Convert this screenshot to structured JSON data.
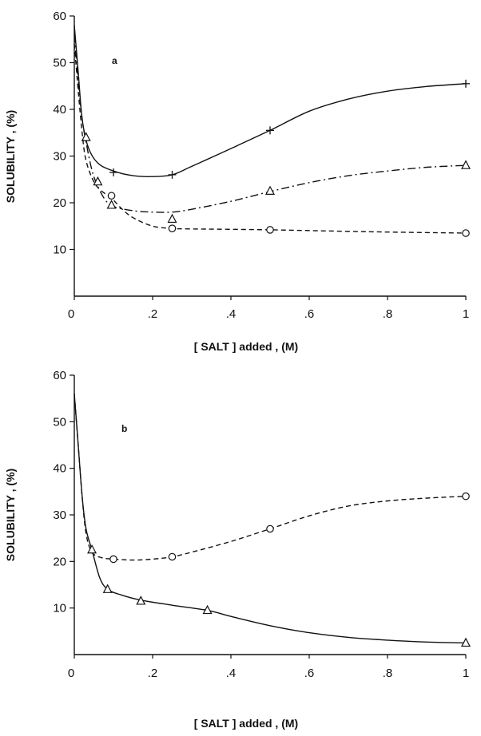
{
  "chart_data": [
    {
      "type": "line",
      "panel_label": "a",
      "xlabel": "[ SALT ] added , (M)",
      "ylabel": "SOLUBILITY , (%)",
      "xlim": [
        0,
        1
      ],
      "ylim": [
        0,
        60
      ],
      "x_ticks": [
        0,
        0.2,
        0.4,
        0.6,
        0.8,
        1
      ],
      "x_tick_labels": [
        "0",
        ".2",
        ".4",
        ".6",
        ".8",
        "1"
      ],
      "y_ticks": [
        10,
        20,
        30,
        40,
        50,
        60
      ],
      "y_tick_labels": [
        "10",
        "20",
        "30",
        "40",
        "50",
        "60"
      ],
      "grid": false,
      "series": [
        {
          "marker": "plus",
          "line_style": "solid",
          "points": [
            [
              0.1,
              26.5
            ],
            [
              0.25,
              26
            ],
            [
              0.5,
              35.5
            ],
            [
              1.0,
              45.5
            ]
          ],
          "curve": [
            [
              0.0,
              58
            ],
            [
              0.01,
              48
            ],
            [
              0.02,
              38
            ],
            [
              0.035,
              32
            ],
            [
              0.06,
              28.5
            ],
            [
              0.1,
              26.8
            ],
            [
              0.15,
              25.8
            ],
            [
              0.2,
              25.6
            ],
            [
              0.25,
              26
            ],
            [
              0.3,
              27.8
            ],
            [
              0.4,
              31.6
            ],
            [
              0.5,
              35.5
            ],
            [
              0.6,
              39.6
            ],
            [
              0.7,
              42.2
            ],
            [
              0.8,
              43.9
            ],
            [
              0.9,
              44.9
            ],
            [
              1.0,
              45.5
            ]
          ]
        },
        {
          "marker": "triangle",
          "line_style": "dashdot",
          "points": [
            [
              0.03,
              34
            ],
            [
              0.06,
              24.5
            ],
            [
              0.095,
              19.5
            ],
            [
              0.25,
              16.5
            ],
            [
              0.5,
              22.5
            ],
            [
              1.0,
              28
            ]
          ],
          "curve": [
            [
              0.0,
              56
            ],
            [
              0.01,
              46
            ],
            [
              0.02,
              38
            ],
            [
              0.03,
              33
            ],
            [
              0.045,
              27
            ],
            [
              0.06,
              23.5
            ],
            [
              0.08,
              20.5
            ],
            [
              0.1,
              19.2
            ],
            [
              0.15,
              18.3
            ],
            [
              0.2,
              18
            ],
            [
              0.25,
              18
            ],
            [
              0.3,
              18.6
            ],
            [
              0.4,
              20.3
            ],
            [
              0.5,
              22.4
            ],
            [
              0.6,
              24.3
            ],
            [
              0.7,
              25.8
            ],
            [
              0.8,
              26.8
            ],
            [
              0.9,
              27.6
            ],
            [
              1.0,
              28
            ]
          ]
        },
        {
          "marker": "circle",
          "line_style": "dashed",
          "points": [
            [
              0.095,
              21.5
            ],
            [
              0.25,
              14.5
            ],
            [
              0.5,
              14.2
            ],
            [
              1.0,
              13.5
            ]
          ],
          "curve": [
            [
              0.0,
              54
            ],
            [
              0.01,
              44
            ],
            [
              0.02,
              35
            ],
            [
              0.03,
              29
            ],
            [
              0.05,
              24.5
            ],
            [
              0.07,
              22.5
            ],
            [
              0.095,
              21
            ],
            [
              0.12,
              18.8
            ],
            [
              0.15,
              16.8
            ],
            [
              0.2,
              15
            ],
            [
              0.25,
              14.5
            ],
            [
              0.3,
              14.4
            ],
            [
              0.5,
              14.2
            ],
            [
              0.75,
              13.8
            ],
            [
              1.0,
              13.5
            ]
          ]
        }
      ]
    },
    {
      "type": "line",
      "panel_label": "b",
      "xlabel": "[ SALT ] added , (M)",
      "ylabel": "SOLUBILITY , (%)",
      "xlim": [
        0,
        1
      ],
      "ylim": [
        0,
        60
      ],
      "x_ticks": [
        0,
        0.2,
        0.4,
        0.6,
        0.8,
        1
      ],
      "x_tick_labels": [
        "0",
        ".2",
        ".4",
        ".6",
        ".8",
        "1"
      ],
      "y_ticks": [
        10,
        20,
        30,
        40,
        50,
        60
      ],
      "y_tick_labels": [
        "10",
        "20",
        "30",
        "40",
        "50",
        "60"
      ],
      "grid": false,
      "series": [
        {
          "marker": "circle",
          "line_style": "dashed",
          "points": [
            [
              0.1,
              20.5
            ],
            [
              0.25,
              21
            ],
            [
              0.5,
              27
            ],
            [
              1.0,
              34
            ]
          ],
          "curve": [
            [
              0.0,
              56
            ],
            [
              0.01,
              45
            ],
            [
              0.02,
              34
            ],
            [
              0.03,
              26
            ],
            [
              0.045,
              22
            ],
            [
              0.07,
              20.8
            ],
            [
              0.1,
              20.5
            ],
            [
              0.15,
              20.3
            ],
            [
              0.2,
              20.5
            ],
            [
              0.25,
              21
            ],
            [
              0.3,
              22
            ],
            [
              0.4,
              24.3
            ],
            [
              0.5,
              27
            ],
            [
              0.6,
              29.8
            ],
            [
              0.7,
              31.9
            ],
            [
              0.8,
              33
            ],
            [
              0.9,
              33.6
            ],
            [
              1.0,
              34
            ]
          ]
        },
        {
          "marker": "triangle",
          "line_style": "solid",
          "points": [
            [
              0.045,
              22.5
            ],
            [
              0.085,
              14
            ],
            [
              0.17,
              11.5
            ],
            [
              0.34,
              9.5
            ],
            [
              1.0,
              2.5
            ]
          ],
          "curve": [
            [
              0.0,
              56
            ],
            [
              0.01,
              45
            ],
            [
              0.02,
              34
            ],
            [
              0.03,
              27
            ],
            [
              0.045,
              22.5
            ],
            [
              0.065,
              16.5
            ],
            [
              0.085,
              14
            ],
            [
              0.12,
              12.8
            ],
            [
              0.17,
              11.7
            ],
            [
              0.25,
              10.6
            ],
            [
              0.34,
              9.5
            ],
            [
              0.4,
              8.2
            ],
            [
              0.5,
              6.2
            ],
            [
              0.6,
              4.7
            ],
            [
              0.7,
              3.7
            ],
            [
              0.8,
              3.1
            ],
            [
              0.9,
              2.7
            ],
            [
              1.0,
              2.5
            ]
          ]
        }
      ]
    }
  ]
}
